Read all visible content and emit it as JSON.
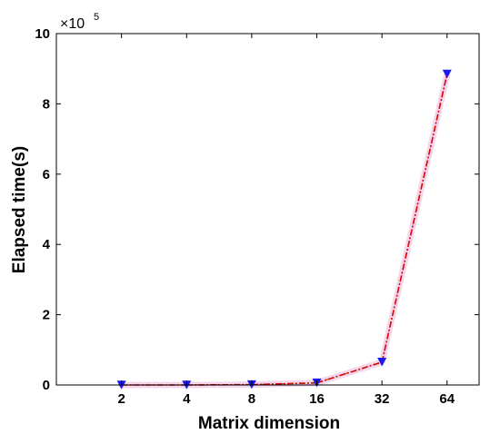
{
  "chart_data": {
    "type": "line",
    "x_axis_scale": "log2",
    "categories": [
      "2",
      "4",
      "8",
      "16",
      "32",
      "64"
    ],
    "x": [
      2,
      4,
      8,
      16,
      32,
      64
    ],
    "series": [
      {
        "values": [
          0.0,
          0.0,
          0.01,
          0.06,
          0.65,
          8.85
        ],
        "line_color": "#dd0000",
        "line_style": "dash-dot",
        "marker": "triangle-down",
        "marker_color": "#1a1aee"
      }
    ],
    "xlabel": "Matrix dimension",
    "ylabel": "Elapsed time(s)",
    "y_multiplier_base": "×10",
    "y_multiplier_exponent": "5",
    "ylim": [
      0,
      10
    ],
    "yticks": [
      "0",
      "2",
      "4",
      "6",
      "8",
      "10"
    ],
    "xlim": [
      1,
      90
    ],
    "grid": false,
    "box": true
  }
}
